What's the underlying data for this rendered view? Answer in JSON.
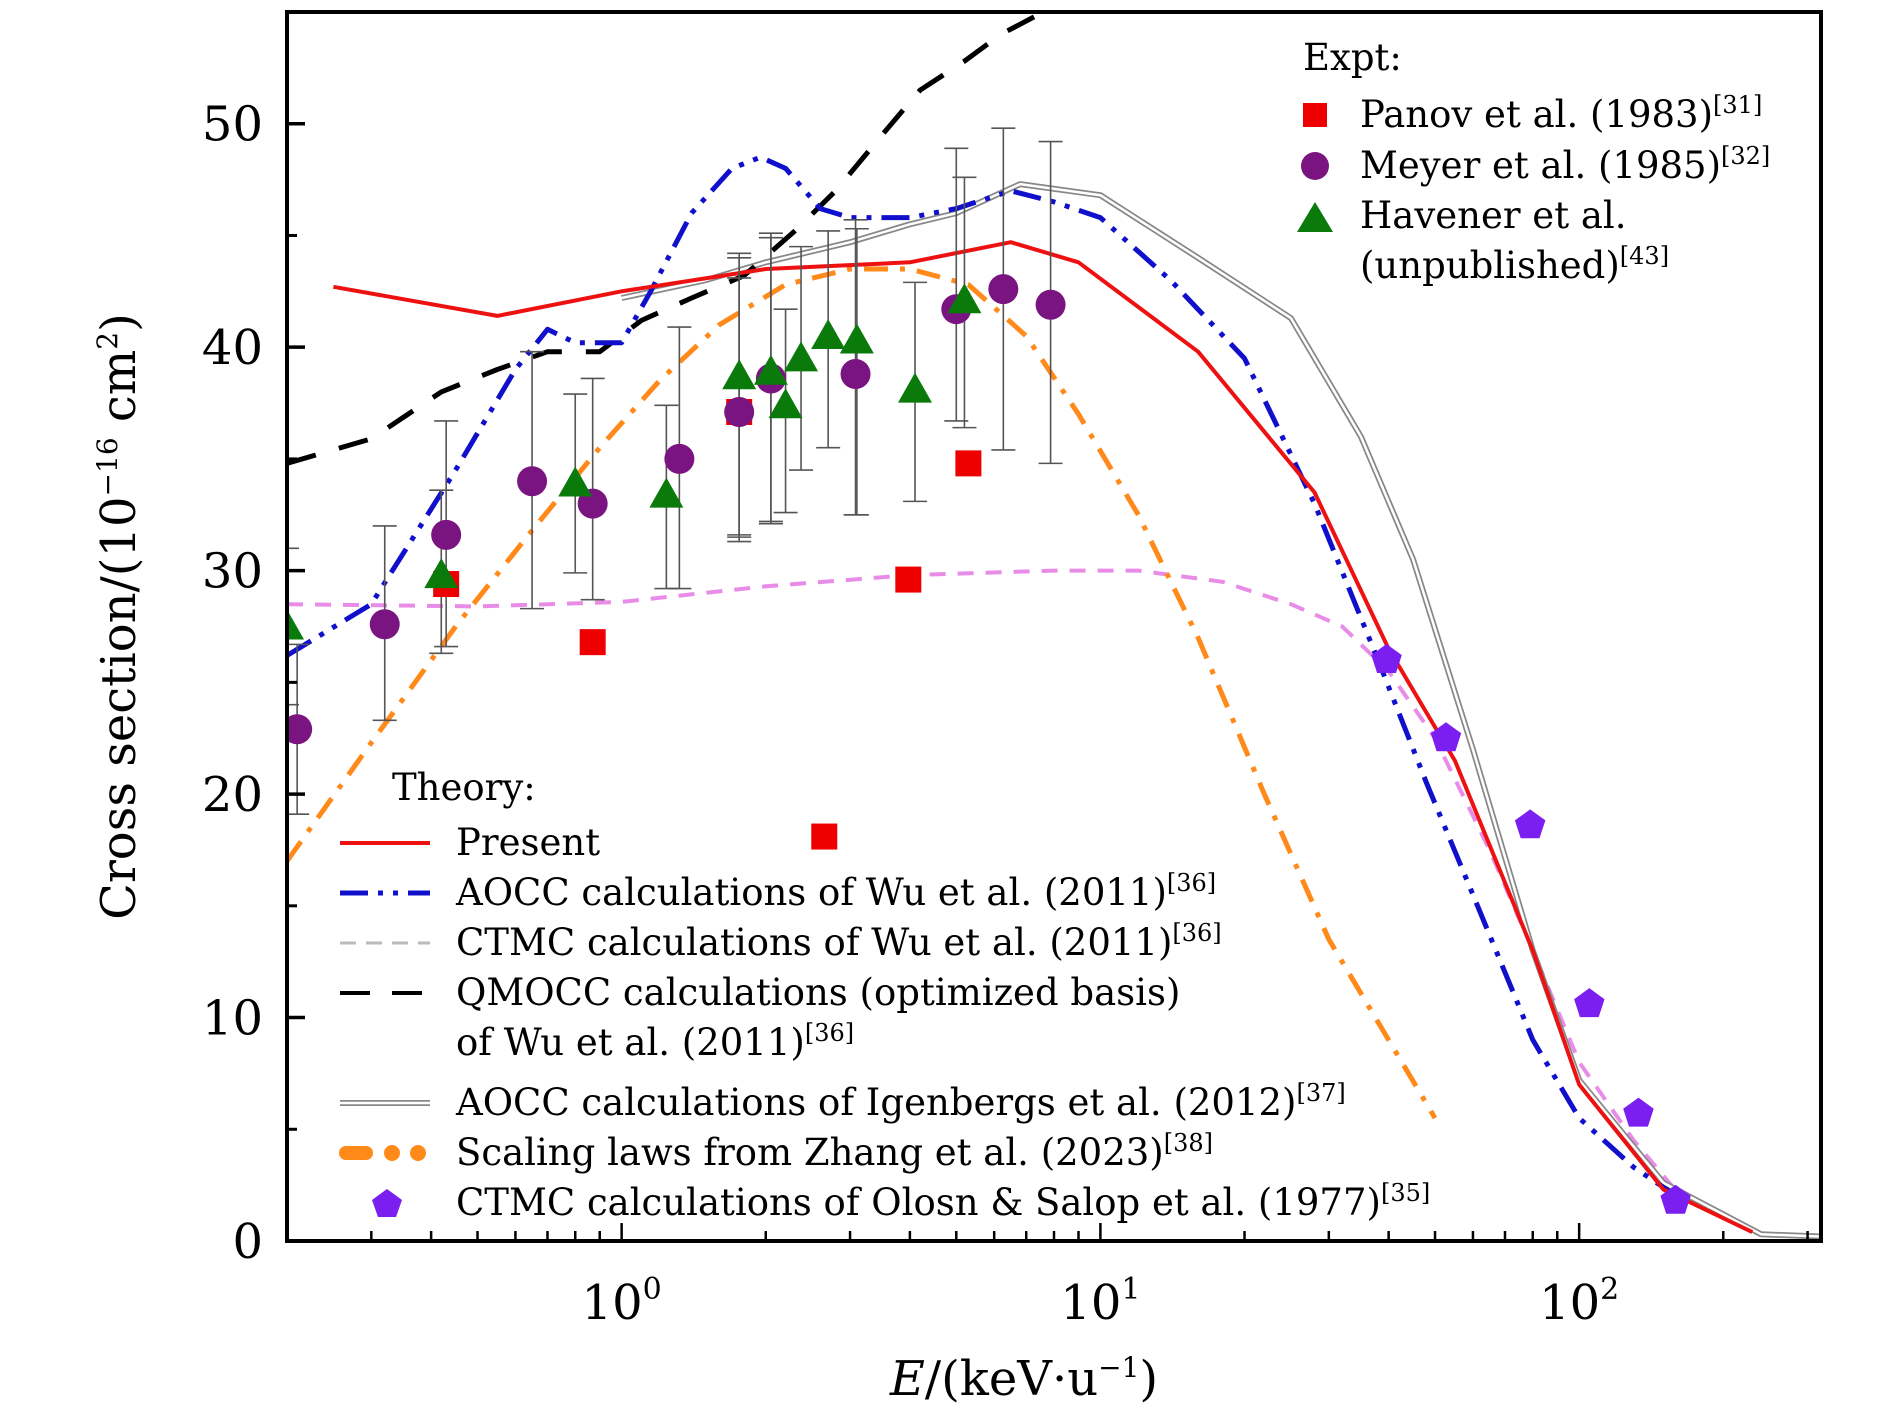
{
  "chart_data": {
    "type": "line",
    "title": "",
    "xlabel": "E/(keV·u⁻¹)",
    "xlabel_italic_part": "E",
    "xlabel_rest": "/(keV·u",
    "xlabel_sup": "−1",
    "xlabel_close": ")",
    "ylabel_main": "Cross section/(10",
    "ylabel_sup": "−16",
    "ylabel_unit": " cm",
    "ylabel_unit_sup": "2",
    "ylabel_close": ")",
    "xscale": "log",
    "xlim": [
      0.2,
      320
    ],
    "ylim": [
      0,
      55
    ],
    "grid": false,
    "xticks": [
      {
        "value": 1,
        "base": "10",
        "exp": "0"
      },
      {
        "value": 10,
        "base": "10",
        "exp": "1"
      },
      {
        "value": 100,
        "base": "10",
        "exp": "2"
      }
    ],
    "yticks": [
      {
        "value": 0,
        "label": "0"
      },
      {
        "value": 10,
        "label": "10"
      },
      {
        "value": 20,
        "label": "20"
      },
      {
        "value": 30,
        "label": "30"
      },
      {
        "value": 40,
        "label": "40"
      },
      {
        "value": 50,
        "label": "50"
      }
    ],
    "legends": {
      "expt": {
        "title": "Expt:",
        "placement": "top-right",
        "entries": [
          {
            "key": "panov",
            "label": "Panov et al. (1983)",
            "ref": "[31]"
          },
          {
            "key": "meyer",
            "label": "Meyer et al. (1985)",
            "ref": "[32]"
          },
          {
            "key": "havener",
            "label": "Havener et al.",
            "label2": "(unpublished)",
            "ref": "[43]"
          }
        ]
      },
      "theory": {
        "title": "Theory:",
        "placement": "bottom-left",
        "entries": [
          {
            "key": "present",
            "label": "Present",
            "ref": ""
          },
          {
            "key": "aocc_wu",
            "label": "AOCC calculations of Wu et al. (2011)",
            "ref": "[36]"
          },
          {
            "key": "ctmc_wu",
            "label": "CTMC calculations of Wu et al. (2011)",
            "ref": "[36]"
          },
          {
            "key": "qmocc_wu",
            "label": "QMOCC calculations (optimized basis)",
            "label2": "of Wu et al. (2011)",
            "ref": "[36]"
          },
          {
            "key": "aocc_igenbergs",
            "label": "AOCC calculations of Igenbergs et al. (2012)",
            "ref": "[37]"
          },
          {
            "key": "scaling_zhang",
            "label": "Scaling laws from Zhang et al. (2023)",
            "ref": "[38]"
          },
          {
            "key": "ctmc_olson",
            "label": "CTMC calculations of Olosn & Salop et al. (1977)",
            "ref": "[35]"
          }
        ]
      }
    },
    "colors": {
      "present": "#ee1111",
      "aocc_wu": "#1010cc",
      "ctmc_wu": "#e88ce8",
      "ctmc_wu_legend": "#bbbbbb",
      "qmocc_wu": "#000000",
      "aocc_igenbergs": "#888888",
      "scaling_zhang": "#ff8a1a",
      "ctmc_olson": "#7a1ff0",
      "panov": "#ee0000",
      "meyer": "#7a1480",
      "havener": "#0a7a0a",
      "errorbar": "#555555"
    },
    "series": [
      {
        "key": "present",
        "name": "Present",
        "style": "solid",
        "x": [
          0.25,
          0.55,
          1.0,
          2.0,
          4.0,
          6.5,
          9.0,
          16,
          28,
          40,
          55,
          80,
          100,
          150,
          230
        ],
        "y": [
          42.7,
          41.4,
          42.5,
          43.5,
          43.8,
          44.7,
          43.8,
          39.8,
          33.5,
          26.5,
          21.5,
          13.0,
          7.0,
          2.3,
          0.4
        ]
      },
      {
        "key": "aocc_wu",
        "name": "AOCC Wu 2011",
        "style": "dashdotdot",
        "x": [
          0.2,
          0.3,
          0.45,
          0.6,
          0.7,
          0.8,
          1.0,
          1.15,
          1.4,
          1.7,
          1.95,
          2.2,
          2.6,
          3.0,
          4.0,
          5.0,
          6.5,
          8.0,
          10,
          14,
          20,
          28,
          38,
          48,
          60,
          80,
          100,
          130,
          160
        ],
        "y": [
          26.2,
          28.5,
          34.5,
          39.0,
          40.8,
          40.2,
          40.2,
          42.5,
          46.0,
          48.0,
          48.5,
          48.0,
          46.2,
          45.8,
          45.8,
          46.2,
          47.0,
          46.5,
          45.8,
          43.0,
          39.5,
          33.0,
          26.0,
          20.5,
          15.5,
          9.0,
          5.5,
          3.3,
          2.0
        ]
      },
      {
        "key": "ctmc_wu",
        "name": "CTMC Wu 2011",
        "style": "dashed",
        "x": [
          0.2,
          0.5,
          1.0,
          2.0,
          4.0,
          8.0,
          12,
          18,
          25,
          32,
          40,
          50,
          65,
          80,
          100,
          130,
          160
        ],
        "y": [
          28.5,
          28.4,
          28.6,
          29.3,
          29.8,
          30.0,
          30.0,
          29.5,
          28.5,
          27.5,
          25.5,
          22.5,
          17.5,
          13.0,
          8.0,
          4.5,
          2.2
        ]
      },
      {
        "key": "qmocc_wu",
        "name": "QMOCC Wu 2011",
        "style": "longdash",
        "x": [
          0.2,
          0.3,
          0.42,
          0.55,
          0.7,
          0.9,
          1.1,
          1.4,
          1.8,
          2.3,
          2.8,
          3.5,
          4.2,
          5.2,
          6.2,
          7.6
        ],
        "y": [
          34.8,
          35.9,
          38.0,
          39.0,
          39.8,
          39.8,
          41.2,
          42.2,
          43.2,
          45.2,
          47.0,
          49.5,
          51.5,
          52.8,
          54.0,
          55.0
        ]
      },
      {
        "key": "aocc_igenbergs",
        "name": "AOCC Igenbergs 2012",
        "style": "double",
        "x": [
          1.0,
          1.5,
          2.0,
          3.0,
          4.0,
          5.0,
          6.8,
          10,
          16,
          25,
          35,
          45,
          60,
          80,
          100,
          150,
          240,
          320
        ],
        "y": [
          42.2,
          43.0,
          43.8,
          44.7,
          45.5,
          46.0,
          47.3,
          46.8,
          44.0,
          41.3,
          36.0,
          30.5,
          22.0,
          13.0,
          7.2,
          2.6,
          0.3,
          0.2
        ]
      },
      {
        "key": "scaling_zhang",
        "name": "Scaling laws Zhang 2023",
        "style": "dashdot-thick",
        "x": [
          0.2,
          0.3,
          0.45,
          0.65,
          0.9,
          1.2,
          1.6,
          2.2,
          3.0,
          4.0,
          5.3,
          7.0,
          9.0,
          12,
          16,
          22,
          30,
          40,
          50
        ],
        "y": [
          17.0,
          22.3,
          27.5,
          31.8,
          35.5,
          38.5,
          41.0,
          42.8,
          43.5,
          43.5,
          42.8,
          40.5,
          37.0,
          32.5,
          27.0,
          20.0,
          13.5,
          9.0,
          5.5
        ]
      }
    ],
    "points": [
      {
        "key": "panov",
        "marker": "square",
        "x": [
          0.43,
          0.87,
          1.76,
          2.65,
          3.97,
          5.3
        ],
        "y": [
          29.4,
          26.8,
          37.1,
          18.1,
          29.6,
          34.8
        ],
        "err_low": [
          null,
          null,
          5.5,
          null,
          null,
          null
        ],
        "err_high": [
          null,
          null,
          6.0,
          null,
          null,
          null
        ]
      },
      {
        "key": "meyer",
        "marker": "circle",
        "x": [
          0.21,
          0.32,
          0.43,
          0.65,
          0.87,
          1.32,
          1.76,
          2.05,
          3.08,
          5.0,
          6.27,
          7.87
        ],
        "y": [
          22.9,
          27.6,
          31.6,
          34.0,
          33.0,
          35.0,
          37.1,
          38.6,
          38.8,
          41.7,
          42.6,
          41.9
        ],
        "err_low": [
          3.8,
          4.3,
          5.0,
          5.7,
          4.3,
          5.8,
          5.6,
          6.5,
          6.3,
          5.0,
          7.2,
          7.1
        ],
        "err_high": [
          3.8,
          4.4,
          5.1,
          5.8,
          5.6,
          5.9,
          6.9,
          6.5,
          6.9,
          7.2,
          7.2,
          7.3
        ]
      },
      {
        "key": "havener",
        "marker": "triangle",
        "x": [
          0.2,
          0.42,
          0.8,
          1.24,
          1.76,
          2.05,
          2.2,
          2.37,
          2.7,
          3.1,
          4.1,
          5.2
        ],
        "y": [
          27.5,
          29.8,
          33.9,
          33.4,
          38.7,
          38.9,
          37.4,
          39.5,
          40.5,
          40.3,
          38.1,
          42.1
        ],
        "err_low": [
          3.5,
          3.5,
          4.0,
          4.2,
          7.4,
          6.7,
          4.8,
          5.0,
          5.0,
          7.8,
          5.0,
          5.7
        ],
        "err_high": [
          3.5,
          3.8,
          4.0,
          4.0,
          5.5,
          6.0,
          4.3,
          5.0,
          4.7,
          5.0,
          4.8,
          5.5
        ]
      },
      {
        "key": "ctmc_olson",
        "marker": "pentagon",
        "x": [
          39.6,
          52.7,
          79,
          105,
          133,
          159
        ],
        "y": [
          26.0,
          22.5,
          18.6,
          10.6,
          5.7,
          1.8
        ],
        "err_low": [
          null,
          null,
          null,
          null,
          null,
          null
        ],
        "err_high": [
          null,
          null,
          null,
          null,
          null,
          null
        ]
      }
    ]
  }
}
